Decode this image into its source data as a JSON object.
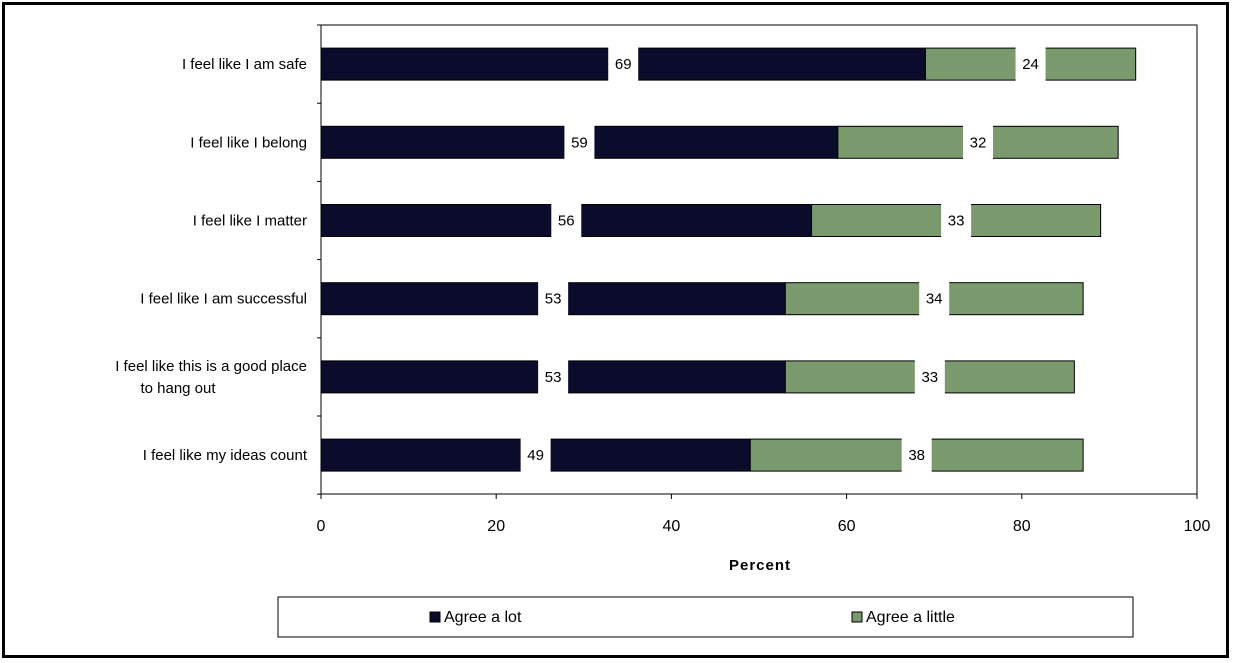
{
  "chart_data": {
    "type": "bar",
    "orientation": "horizontal",
    "stacked": true,
    "categories": [
      "I feel like I am safe",
      "I feel like I belong",
      "I feel like I matter",
      "I feel like I am successful",
      "I feel like this is a good place to hang out",
      "I feel like my ideas count"
    ],
    "series": [
      {
        "name": "Agree a lot",
        "values": [
          69,
          59,
          56,
          53,
          53,
          49
        ],
        "color": "#0b0b2b"
      },
      {
        "name": "Agree a little",
        "values": [
          24,
          32,
          33,
          34,
          33,
          38
        ],
        "color": "#7a9a6e"
      }
    ],
    "xlabel": "Percent",
    "xlim": [
      0,
      100
    ],
    "xticks": [
      0,
      20,
      40,
      60,
      80,
      100
    ],
    "grid": false,
    "legend": "bottom"
  }
}
